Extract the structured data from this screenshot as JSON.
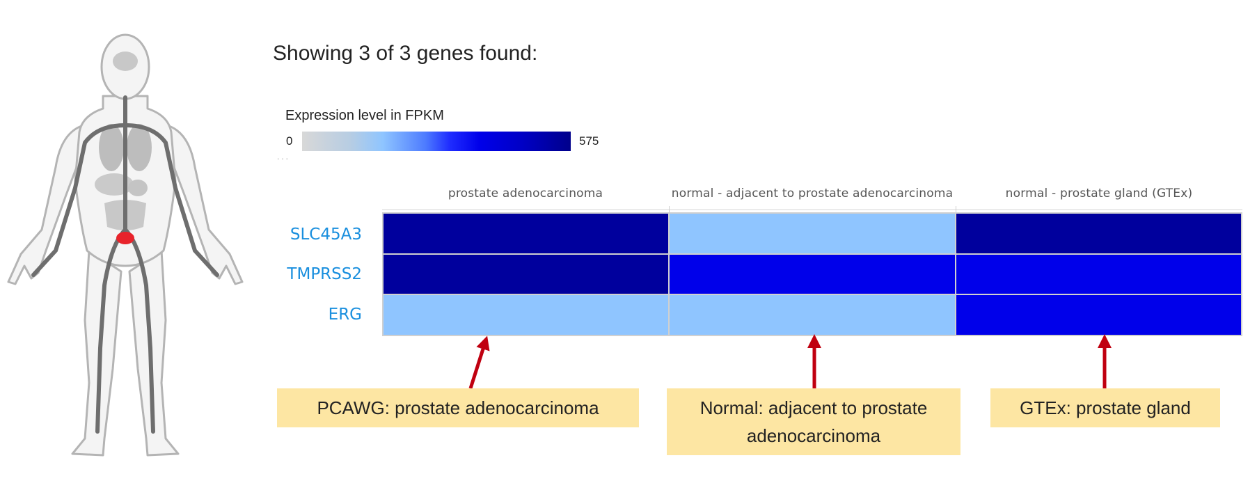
{
  "title": "Showing 3 of 3 genes found:",
  "legend": {
    "title": "Expression level in FPKM",
    "min_label": "0",
    "max_label": "575",
    "dots": "..."
  },
  "columns": [
    {
      "label": "prostate adenocarcinoma"
    },
    {
      "label": "normal - adjacent to prostate adenocarcinoma"
    },
    {
      "label": "normal - prostate gland (GTEx)"
    }
  ],
  "genes": [
    {
      "name": "SLC45A3",
      "cells": [
        "#00009d",
        "#8fc5ff",
        "#00009d"
      ]
    },
    {
      "name": "TMPRSS2",
      "cells": [
        "#00009d",
        "#0000ea",
        "#0000ea"
      ]
    },
    {
      "name": "ERG",
      "cells": [
        "#8fc5ff",
        "#8fc5ff",
        "#0000ea"
      ]
    }
  ],
  "callouts": [
    {
      "text": "PCAWG: prostate adenocarcinoma"
    },
    {
      "text": "Normal: adjacent to prostate adenocarcinoma"
    },
    {
      "text": "GTEx: prostate gland"
    }
  ],
  "colors": {
    "arrow": "#c00010",
    "callout_bg": "#fde6a3",
    "gene_link": "#1a8fde",
    "highlight_organ": "#e8232b"
  },
  "icons": {
    "anatomy": "human-anatomy-figure",
    "organ": "prostate-highlight-icon"
  }
}
